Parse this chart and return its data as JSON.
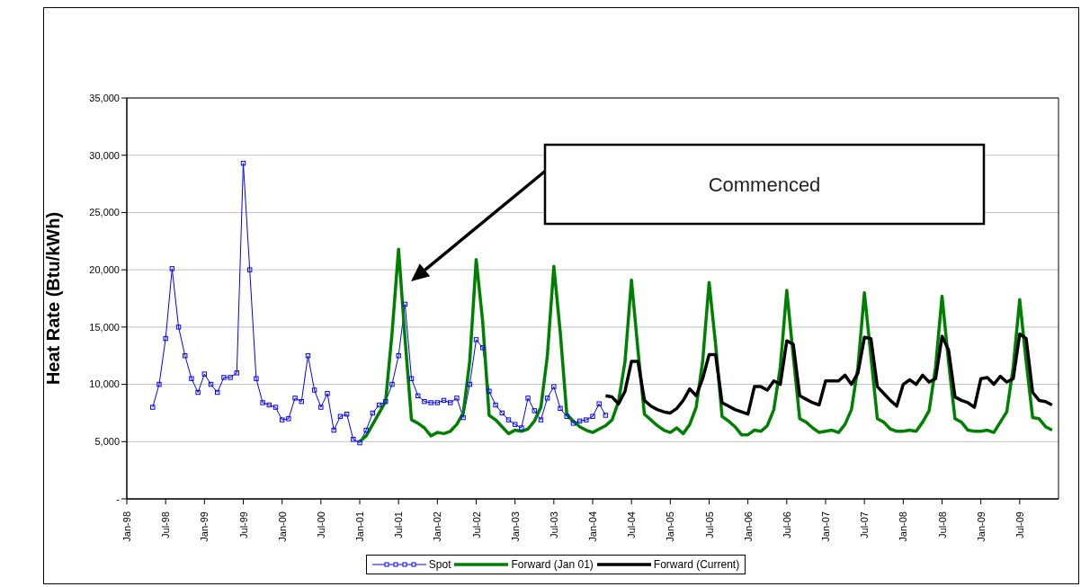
{
  "chart_data": {
    "type": "line",
    "ylabel": "Heat Rate (Btu/kWh)",
    "annotations": [
      "Commenced"
    ],
    "x": [
      "1998-05",
      "1998-06",
      "1998-07",
      "1998-08",
      "1998-09",
      "1998-10",
      "1998-11",
      "1998-12",
      "1999-01",
      "1999-02",
      "1999-03",
      "1999-04",
      "1999-05",
      "1999-06",
      "1999-07",
      "1999-08",
      "1999-09",
      "1999-10",
      "1999-11",
      "1999-12",
      "2000-01",
      "2000-02",
      "2000-03",
      "2000-04",
      "2000-05",
      "2000-06",
      "2000-07",
      "2000-08",
      "2000-09",
      "2000-10",
      "2000-11",
      "2000-12",
      "2001-01",
      "2001-02",
      "2001-03",
      "2001-04",
      "2001-05",
      "2001-06",
      "2001-07",
      "2001-08",
      "2001-09",
      "2001-10",
      "2001-11",
      "2001-12",
      "2002-01",
      "2002-02",
      "2002-03",
      "2002-04",
      "2002-05",
      "2002-06",
      "2002-07",
      "2002-08",
      "2002-09",
      "2002-10",
      "2002-11",
      "2002-12",
      "2003-01",
      "2003-02",
      "2003-03",
      "2003-04",
      "2003-05",
      "2003-06",
      "2003-07",
      "2003-08",
      "2003-09",
      "2003-10",
      "2003-11",
      "2003-12",
      "2004-01",
      "2004-02",
      "2004-03",
      "2004-04",
      "2004-05",
      "2004-06",
      "2004-07",
      "2004-08",
      "2004-09",
      "2004-10",
      "2004-11",
      "2004-12",
      "2005-01",
      "2005-02",
      "2005-03",
      "2005-04",
      "2005-05",
      "2005-06",
      "2005-07",
      "2005-08",
      "2005-09",
      "2005-10",
      "2005-11",
      "2005-12",
      "2006-01",
      "2006-02",
      "2006-03",
      "2006-04",
      "2006-05",
      "2006-06",
      "2006-07",
      "2006-08",
      "2006-09",
      "2006-10",
      "2006-11",
      "2006-12",
      "2007-01",
      "2007-02",
      "2007-03",
      "2007-04",
      "2007-05",
      "2007-06",
      "2007-07",
      "2007-08",
      "2007-09",
      "2007-10",
      "2007-11",
      "2007-12",
      "2008-01",
      "2008-02",
      "2008-03",
      "2008-04",
      "2008-05",
      "2008-06",
      "2008-07",
      "2008-08",
      "2008-09",
      "2008-10",
      "2008-11",
      "2008-12",
      "2009-01",
      "2009-02",
      "2009-03",
      "2009-04",
      "2009-05",
      "2009-06",
      "2009-07",
      "2009-08",
      "2009-09",
      "2009-10",
      "2009-11",
      "2009-12"
    ],
    "series": [
      {
        "name": "Spot",
        "color": "#0000ff",
        "marker": "square",
        "values": [
          8000,
          10000,
          14000,
          20100,
          15000,
          12500,
          10500,
          9300,
          10900,
          10000,
          9300,
          10600,
          10600,
          11000,
          29300,
          20000,
          10500,
          8400,
          8200,
          8000,
          6900,
          7000,
          8800,
          8500,
          12500,
          9500,
          8000,
          9200,
          6000,
          7200,
          7400,
          5200,
          4900,
          6000,
          7500,
          8200,
          8500,
          10000,
          12500,
          17000,
          10500,
          9000,
          8500,
          8400,
          8400,
          8600,
          8400,
          8800,
          7100,
          10000,
          13900,
          13200,
          9400,
          8200,
          7500,
          6900,
          6500,
          6200,
          8800,
          7700,
          6900,
          8800,
          9800,
          7900,
          7200,
          6600,
          6800,
          6900,
          7200,
          8300,
          7300,
          null,
          null,
          null,
          null,
          null,
          null,
          null,
          null,
          null,
          null,
          null,
          null,
          null,
          null,
          null,
          null,
          null,
          null,
          null,
          null,
          null,
          null,
          null,
          null,
          null,
          null,
          null,
          null,
          null,
          null,
          null,
          null,
          null,
          null,
          null,
          null,
          null,
          null,
          null,
          null,
          null,
          null,
          null,
          null,
          null,
          null,
          null,
          null,
          null,
          null,
          null,
          null,
          null,
          null,
          null,
          null,
          null,
          null,
          null,
          null,
          null,
          null,
          null,
          null,
          null,
          null,
          null,
          null,
          null
        ]
      },
      {
        "name": "Forward (Jan 01)",
        "color": "#008000",
        "marker": "none",
        "values": [
          null,
          null,
          null,
          null,
          null,
          null,
          null,
          null,
          null,
          null,
          null,
          null,
          null,
          null,
          null,
          null,
          null,
          null,
          null,
          null,
          null,
          null,
          null,
          null,
          null,
          null,
          null,
          null,
          null,
          null,
          null,
          null,
          5000,
          5500,
          6500,
          7500,
          8500,
          14500,
          21800,
          14000,
          6900,
          6600,
          6200,
          5500,
          5800,
          5700,
          5900,
          6500,
          7500,
          12000,
          20900,
          15500,
          7300,
          6900,
          6300,
          5700,
          6000,
          5900,
          6100,
          6800,
          8000,
          12500,
          20300,
          14500,
          7400,
          6800,
          6300,
          6000,
          5800,
          6100,
          6400,
          6900,
          8500,
          12000,
          19100,
          13000,
          7400,
          6900,
          6400,
          6000,
          5800,
          6200,
          5700,
          6500,
          8000,
          12000,
          18900,
          13500,
          7200,
          6800,
          6300,
          5600,
          5600,
          6000,
          5900,
          6400,
          7800,
          11500,
          18200,
          12500,
          7000,
          6700,
          6200,
          5800,
          5900,
          6000,
          5800,
          6500,
          7800,
          11500,
          18000,
          12500,
          7000,
          6700,
          6100,
          5900,
          5900,
          6000,
          5900,
          6700,
          7700,
          11500,
          17700,
          12000,
          7000,
          6700,
          6000,
          5900,
          5900,
          6000,
          5800,
          6700,
          7600,
          11500,
          17400,
          12000,
          7100,
          7000,
          6300,
          6000
        ]
      },
      {
        "name": "Forward (Current)",
        "color": "#000000",
        "marker": "none",
        "values": [
          null,
          null,
          null,
          null,
          null,
          null,
          null,
          null,
          null,
          null,
          null,
          null,
          null,
          null,
          null,
          null,
          null,
          null,
          null,
          null,
          null,
          null,
          null,
          null,
          null,
          null,
          null,
          null,
          null,
          null,
          null,
          null,
          null,
          null,
          null,
          null,
          null,
          null,
          null,
          null,
          null,
          null,
          null,
          null,
          null,
          null,
          null,
          null,
          null,
          null,
          null,
          null,
          null,
          null,
          null,
          null,
          null,
          null,
          null,
          null,
          null,
          null,
          null,
          null,
          null,
          null,
          null,
          null,
          null,
          null,
          9000,
          8900,
          8300,
          9400,
          12000,
          12000,
          8600,
          8100,
          7800,
          7600,
          7500,
          7900,
          8600,
          9600,
          9000,
          10500,
          12600,
          12600,
          8400,
          8100,
          7800,
          7600,
          7400,
          9800,
          9800,
          9500,
          10300,
          10000,
          13800,
          13500,
          9000,
          8700,
          8400,
          8200,
          10300,
          10300,
          10300,
          10800,
          10000,
          11000,
          14100,
          14000,
          9800,
          9200,
          8600,
          8100,
          10000,
          10400,
          10000,
          10800,
          10200,
          10500,
          14200,
          13000,
          8900,
          8600,
          8400,
          8000,
          10500,
          10600,
          10000,
          10700,
          10200,
          10500,
          14400,
          14000,
          9300,
          8600,
          8500,
          8200
        ]
      }
    ],
    "xlim": [
      "1998-01",
      "2010-01"
    ],
    "xticks": [
      {
        "value": "1998-01",
        "label": "Jan-98"
      },
      {
        "value": "1998-07",
        "label": "Jul-98"
      },
      {
        "value": "1999-01",
        "label": "Jan-99"
      },
      {
        "value": "1999-07",
        "label": "Jul-99"
      },
      {
        "value": "2000-01",
        "label": "Jan-00"
      },
      {
        "value": "2000-07",
        "label": "Jul-00"
      },
      {
        "value": "2001-01",
        "label": "Jan-01"
      },
      {
        "value": "2001-07",
        "label": "Jul-01"
      },
      {
        "value": "2002-01",
        "label": "Jan-02"
      },
      {
        "value": "2002-07",
        "label": "Jul-02"
      },
      {
        "value": "2003-01",
        "label": "Jan-03"
      },
      {
        "value": "2003-07",
        "label": "Jul-03"
      },
      {
        "value": "2004-01",
        "label": "Jan-04"
      },
      {
        "value": "2004-07",
        "label": "Jul-04"
      },
      {
        "value": "2005-01",
        "label": "Jan-05"
      },
      {
        "value": "2005-07",
        "label": "Jul-05"
      },
      {
        "value": "2006-01",
        "label": "Jan-06"
      },
      {
        "value": "2006-07",
        "label": "Jul-06"
      },
      {
        "value": "2007-01",
        "label": "Jan-07"
      },
      {
        "value": "2007-07",
        "label": "Jul-07"
      },
      {
        "value": "2008-01",
        "label": "Jan-08"
      },
      {
        "value": "2008-07",
        "label": "Jul-08"
      },
      {
        "value": "2009-01",
        "label": "Jan-09"
      },
      {
        "value": "2009-07",
        "label": "Jul-09"
      }
    ],
    "ylim": [
      0,
      35000
    ],
    "yticks": [
      {
        "value": 0,
        "label": "-"
      },
      {
        "value": 5000,
        "label": "5,000"
      },
      {
        "value": 10000,
        "label": "10,000"
      },
      {
        "value": 15000,
        "label": "15,000"
      },
      {
        "value": 20000,
        "label": "20,000"
      },
      {
        "value": 25000,
        "label": "25,000"
      },
      {
        "value": 30000,
        "label": "30,000"
      },
      {
        "value": 35000,
        "label": "35,000"
      }
    ],
    "grid": "y",
    "legend": "bottom",
    "line_style": "solid"
  }
}
